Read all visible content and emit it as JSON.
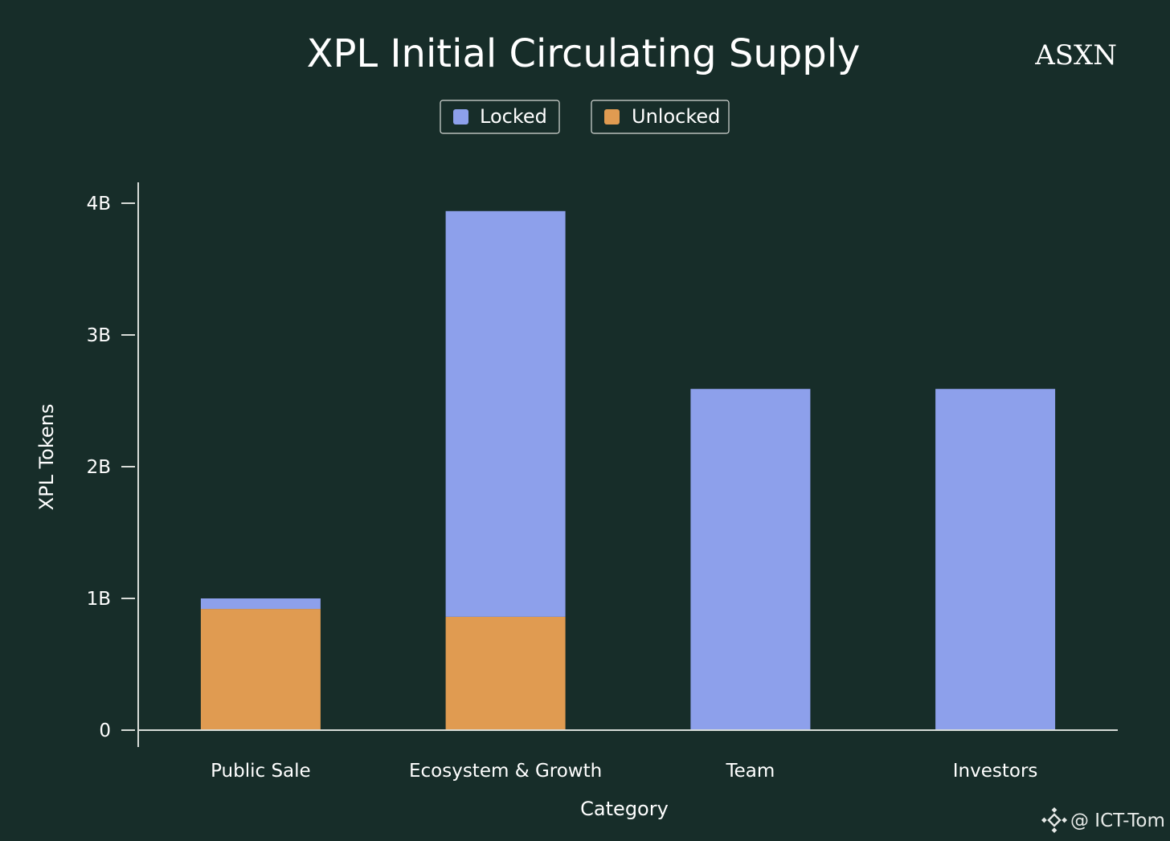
{
  "brand": "ASXN",
  "watermark": "@ ICT-Tom",
  "watermark_icon": "diamond-logo-icon",
  "colors": {
    "background": "#172d29",
    "locked": "#8da0eb",
    "unlocked": "#e09b51",
    "axis": "#d8dcd8"
  },
  "chart_data": {
    "type": "bar",
    "stacked": true,
    "title": "XPL Initial Circulating Supply",
    "xlabel": "Category",
    "ylabel": "XPL Tokens",
    "categories": [
      "Public Sale",
      "Ecosystem & Growth",
      "Team",
      "Investors"
    ],
    "series": [
      {
        "name": "Unlocked",
        "color": "#e09b51",
        "values": [
          0.92,
          0.86,
          0,
          0
        ]
      },
      {
        "name": "Locked",
        "color": "#8da0eb",
        "values": [
          0.08,
          3.08,
          2.59,
          2.59
        ]
      }
    ],
    "ylim": [
      0,
      4
    ],
    "yticks": [
      0,
      1,
      2,
      3,
      4
    ],
    "ytick_labels": [
      "0",
      "1B",
      "2B",
      "3B",
      "4B"
    ],
    "legend": {
      "placement": "top-center",
      "entries": [
        "Locked",
        "Unlocked"
      ]
    },
    "grid": false
  }
}
